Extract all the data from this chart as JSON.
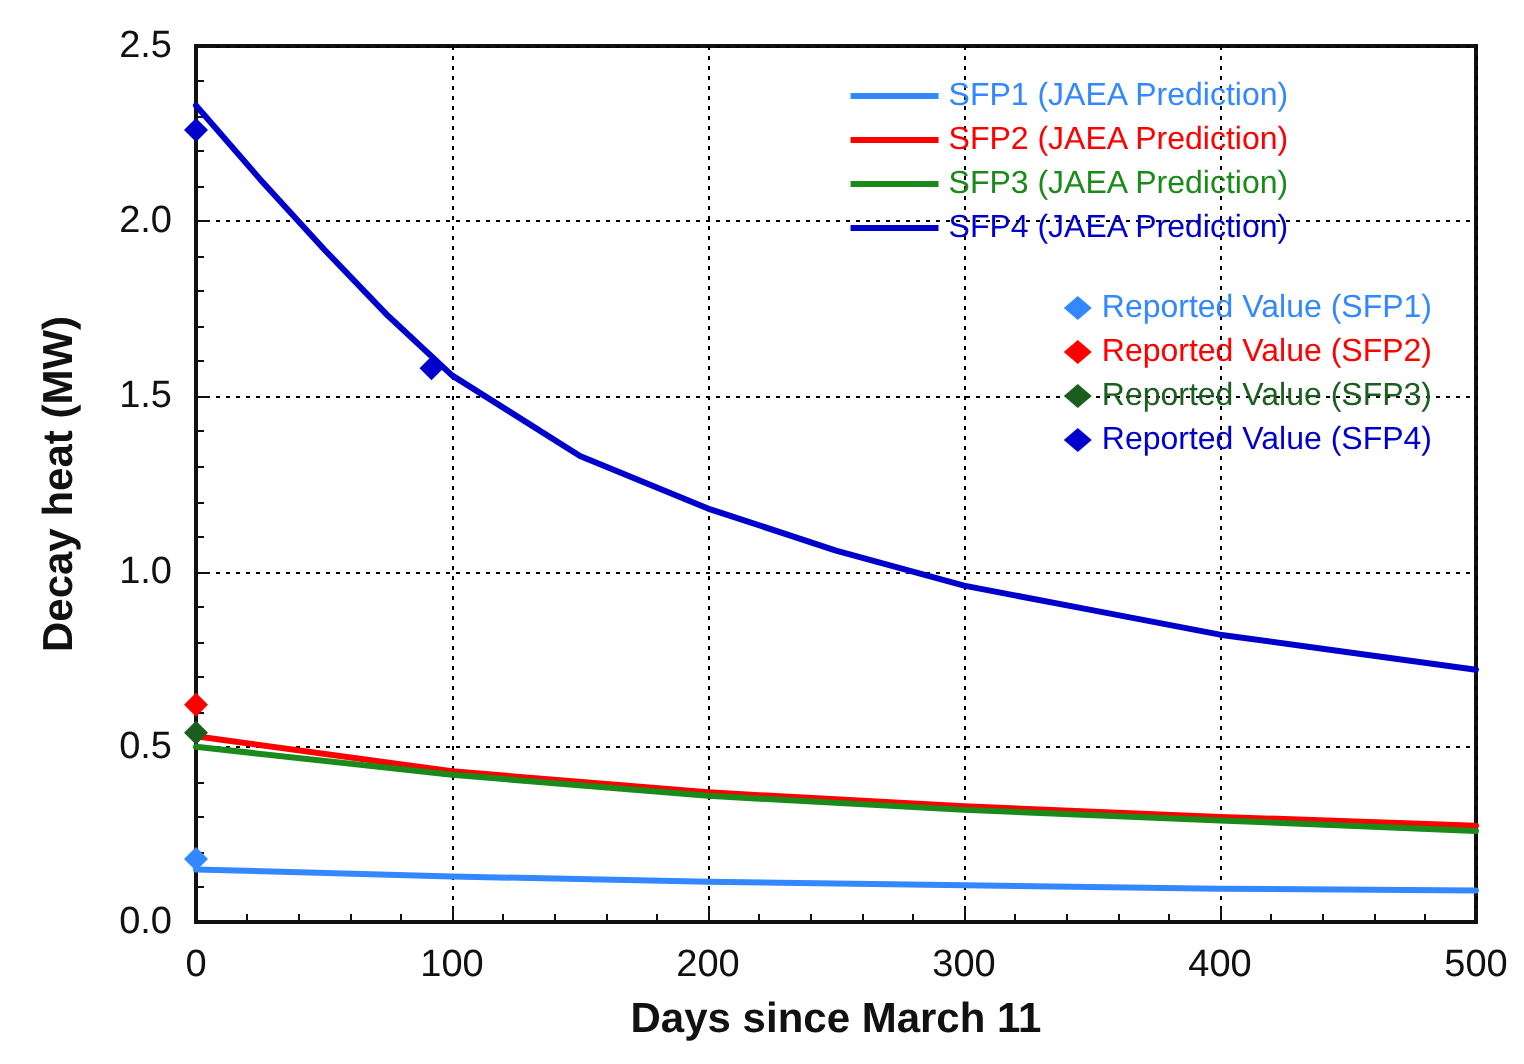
{
  "chart_data": {
    "type": "line",
    "xlabel": "Days since March 11",
    "ylabel": "Decay heat (MW)",
    "xlim": [
      0,
      500
    ],
    "xticks": [
      0,
      100,
      200,
      300,
      400,
      500
    ],
    "ylim": [
      0,
      2.5
    ],
    "yticks": [
      {
        "value": 0,
        "label": "0.0"
      },
      0.5,
      {
        "value": 1,
        "label": "1.0"
      },
      1.5,
      {
        "value": 2,
        "label": "2.0"
      },
      2.5
    ],
    "grid": true,
    "legend": "top right",
    "line_style": "solid",
    "marker": "none",
    "series": [
      {
        "name": "SFP1 (JAEA Prediction)",
        "color": "#3388ff",
        "x": [
          0,
          100,
          200,
          300,
          400,
          500
        ],
        "values": [
          0.15,
          0.13,
          0.115,
          0.105,
          0.095,
          0.09
        ]
      },
      {
        "name": "SFP2 (JAEA Prediction)",
        "color": "#ff0000",
        "x": [
          0,
          100,
          200,
          300,
          400,
          500
        ],
        "values": [
          0.53,
          0.43,
          0.37,
          0.33,
          0.3,
          0.275
        ]
      },
      {
        "name": "SFP3 (JAEA Prediction)",
        "color": "#1a8a1a",
        "x": [
          0,
          100,
          200,
          300,
          400,
          500
        ],
        "values": [
          0.5,
          0.42,
          0.36,
          0.32,
          0.29,
          0.26
        ]
      },
      {
        "name": "SFP4 (JAEA Prediction)",
        "color": "#0000cc",
        "x": [
          0,
          25,
          50,
          75,
          100,
          150,
          200,
          250,
          300,
          350,
          400,
          450,
          500
        ],
        "values": [
          2.33,
          2.12,
          1.92,
          1.73,
          1.56,
          1.33,
          1.18,
          1.06,
          0.96,
          0.89,
          0.82,
          0.77,
          0.72
        ]
      },
      {
        "name": "Reported Value (SFP1)",
        "type": "scatter",
        "marker": "diamond",
        "color": "#3388ff",
        "x": [
          0
        ],
        "values": [
          0.18
        ]
      },
      {
        "name": "Reported Value (SFP2)",
        "type": "scatter",
        "marker": "diamond",
        "color": "#ff0000",
        "x": [
          0
        ],
        "values": [
          0.62
        ]
      },
      {
        "name": "Reported Value (SFP3)",
        "type": "scatter",
        "marker": "diamond",
        "color": "#1b5e20",
        "x": [
          0
        ],
        "values": [
          0.54
        ]
      },
      {
        "name": "Reported Value (SFP4)",
        "type": "scatter",
        "marker": "diamond",
        "color": "#0000cc",
        "x": [
          0,
          92
        ],
        "values": [
          2.26,
          1.58
        ]
      }
    ]
  }
}
